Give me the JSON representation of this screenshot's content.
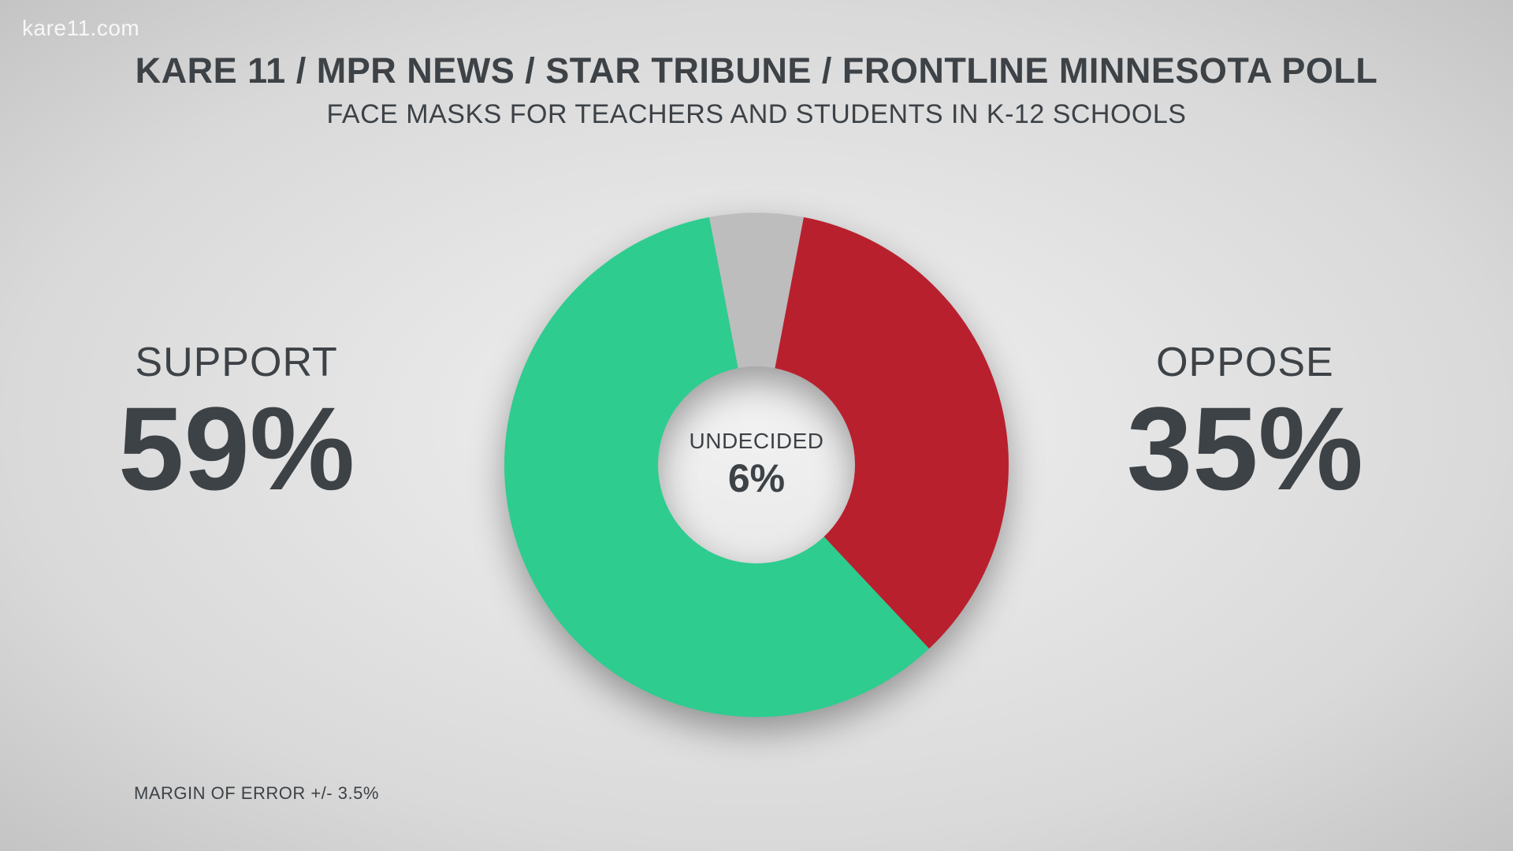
{
  "watermark": "kare11.com",
  "header": {
    "title": "KARE 11 / MPR NEWS / STAR TRIBUNE / FRONTLINE MINNESOTA POLL",
    "subtitle": "FACE MASKS FOR TEACHERS AND STUDENTS IN K-12 SCHOOLS"
  },
  "chart": {
    "type": "donut",
    "outer_radius": 320,
    "inner_radius": 125,
    "start_angle_deg": -10.8,
    "background_gradient": {
      "center": "#f1f1f1",
      "edge": "#c4c4c4"
    },
    "shadow_color": "rgba(0,0,0,0.35)",
    "slices": [
      {
        "key": "undecided",
        "label": "UNDECIDED",
        "value": 6,
        "pct_text": "6%",
        "color": "#bdbdbd"
      },
      {
        "key": "oppose",
        "label": "OPPOSE",
        "value": 35,
        "pct_text": "35%",
        "color": "#b9202e"
      },
      {
        "key": "support",
        "label": "SUPPORT",
        "value": 59,
        "pct_text": "59%",
        "color": "#2ecc8f"
      }
    ]
  },
  "left_label": {
    "word": "SUPPORT",
    "pct": "59%"
  },
  "right_label": {
    "word": "OPPOSE",
    "pct": "35%"
  },
  "center_label": {
    "word": "UNDECIDED",
    "pct": "6%"
  },
  "typography": {
    "title_fontsize": 45,
    "title_weight": 800,
    "subtitle_fontsize": 34,
    "subtitle_weight": 400,
    "side_word_fontsize": 52,
    "side_pct_fontsize": 150,
    "center_word_fontsize": 28,
    "center_pct_fontsize": 50,
    "margin_fontsize": 22,
    "text_color": "#3d4247",
    "watermark_color": "rgba(255,255,255,0.85)"
  },
  "margin_note": "MARGIN OF ERROR +/- 3.5%"
}
